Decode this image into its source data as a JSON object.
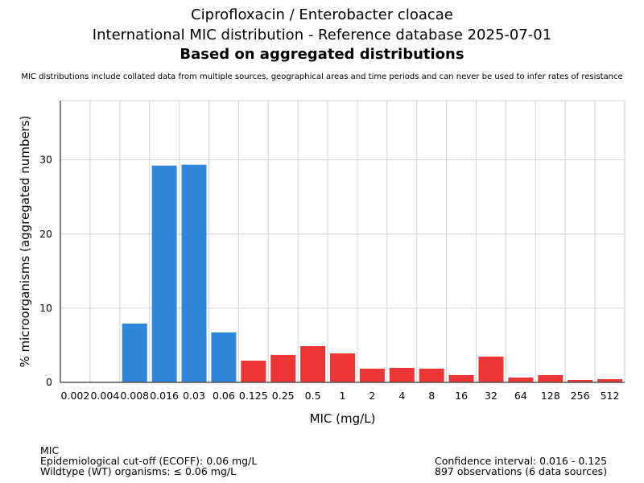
{
  "chart_data": {
    "type": "bar",
    "title": "Ciprofloxacin / Enterobacter cloacae",
    "subtitle": "International MIC distribution - Reference database 2025-07-01",
    "subtitle2": "Based on aggregated distributions",
    "note": "MIC distributions include collated data from multiple sources, geographical areas and time periods and can never be used to infer rates of resistance",
    "xlabel": "MIC (mg/L)",
    "ylabel": "% microorganisms (aggregated numbers)",
    "categories": [
      "0.002",
      "0.004",
      "0.008",
      "0.016",
      "0.03",
      "0.06",
      "0.125",
      "0.25",
      "0.5",
      "1",
      "2",
      "4",
      "8",
      "16",
      "32",
      "64",
      "128",
      "256",
      "512"
    ],
    "values": [
      0,
      0,
      7.93,
      29.24,
      29.35,
      6.74,
      2.93,
      3.7,
      4.89,
      3.91,
      1.85,
      1.96,
      1.85,
      0.98,
      3.48,
      0.65,
      0.98,
      0.33,
      0.43
    ],
    "ylim": [
      0,
      38
    ],
    "yticks": [
      0,
      10,
      20,
      30
    ],
    "grid": true,
    "ecoff_index": 5,
    "colors": {
      "wildtype": "#3086DA",
      "non_wildtype": "#EE3536",
      "grid": "#d3d3d3",
      "axis": "#555555"
    }
  },
  "footer": {
    "left": [
      "MIC",
      "Epidemiological cut-off (ECOFF): 0.06 mg/L",
      "Wildtype (WT) organisms: ≤ 0.06 mg/L"
    ],
    "right": [
      "Confidence interval: 0.016 - 0.125",
      "897 observations (6 data sources)"
    ]
  }
}
